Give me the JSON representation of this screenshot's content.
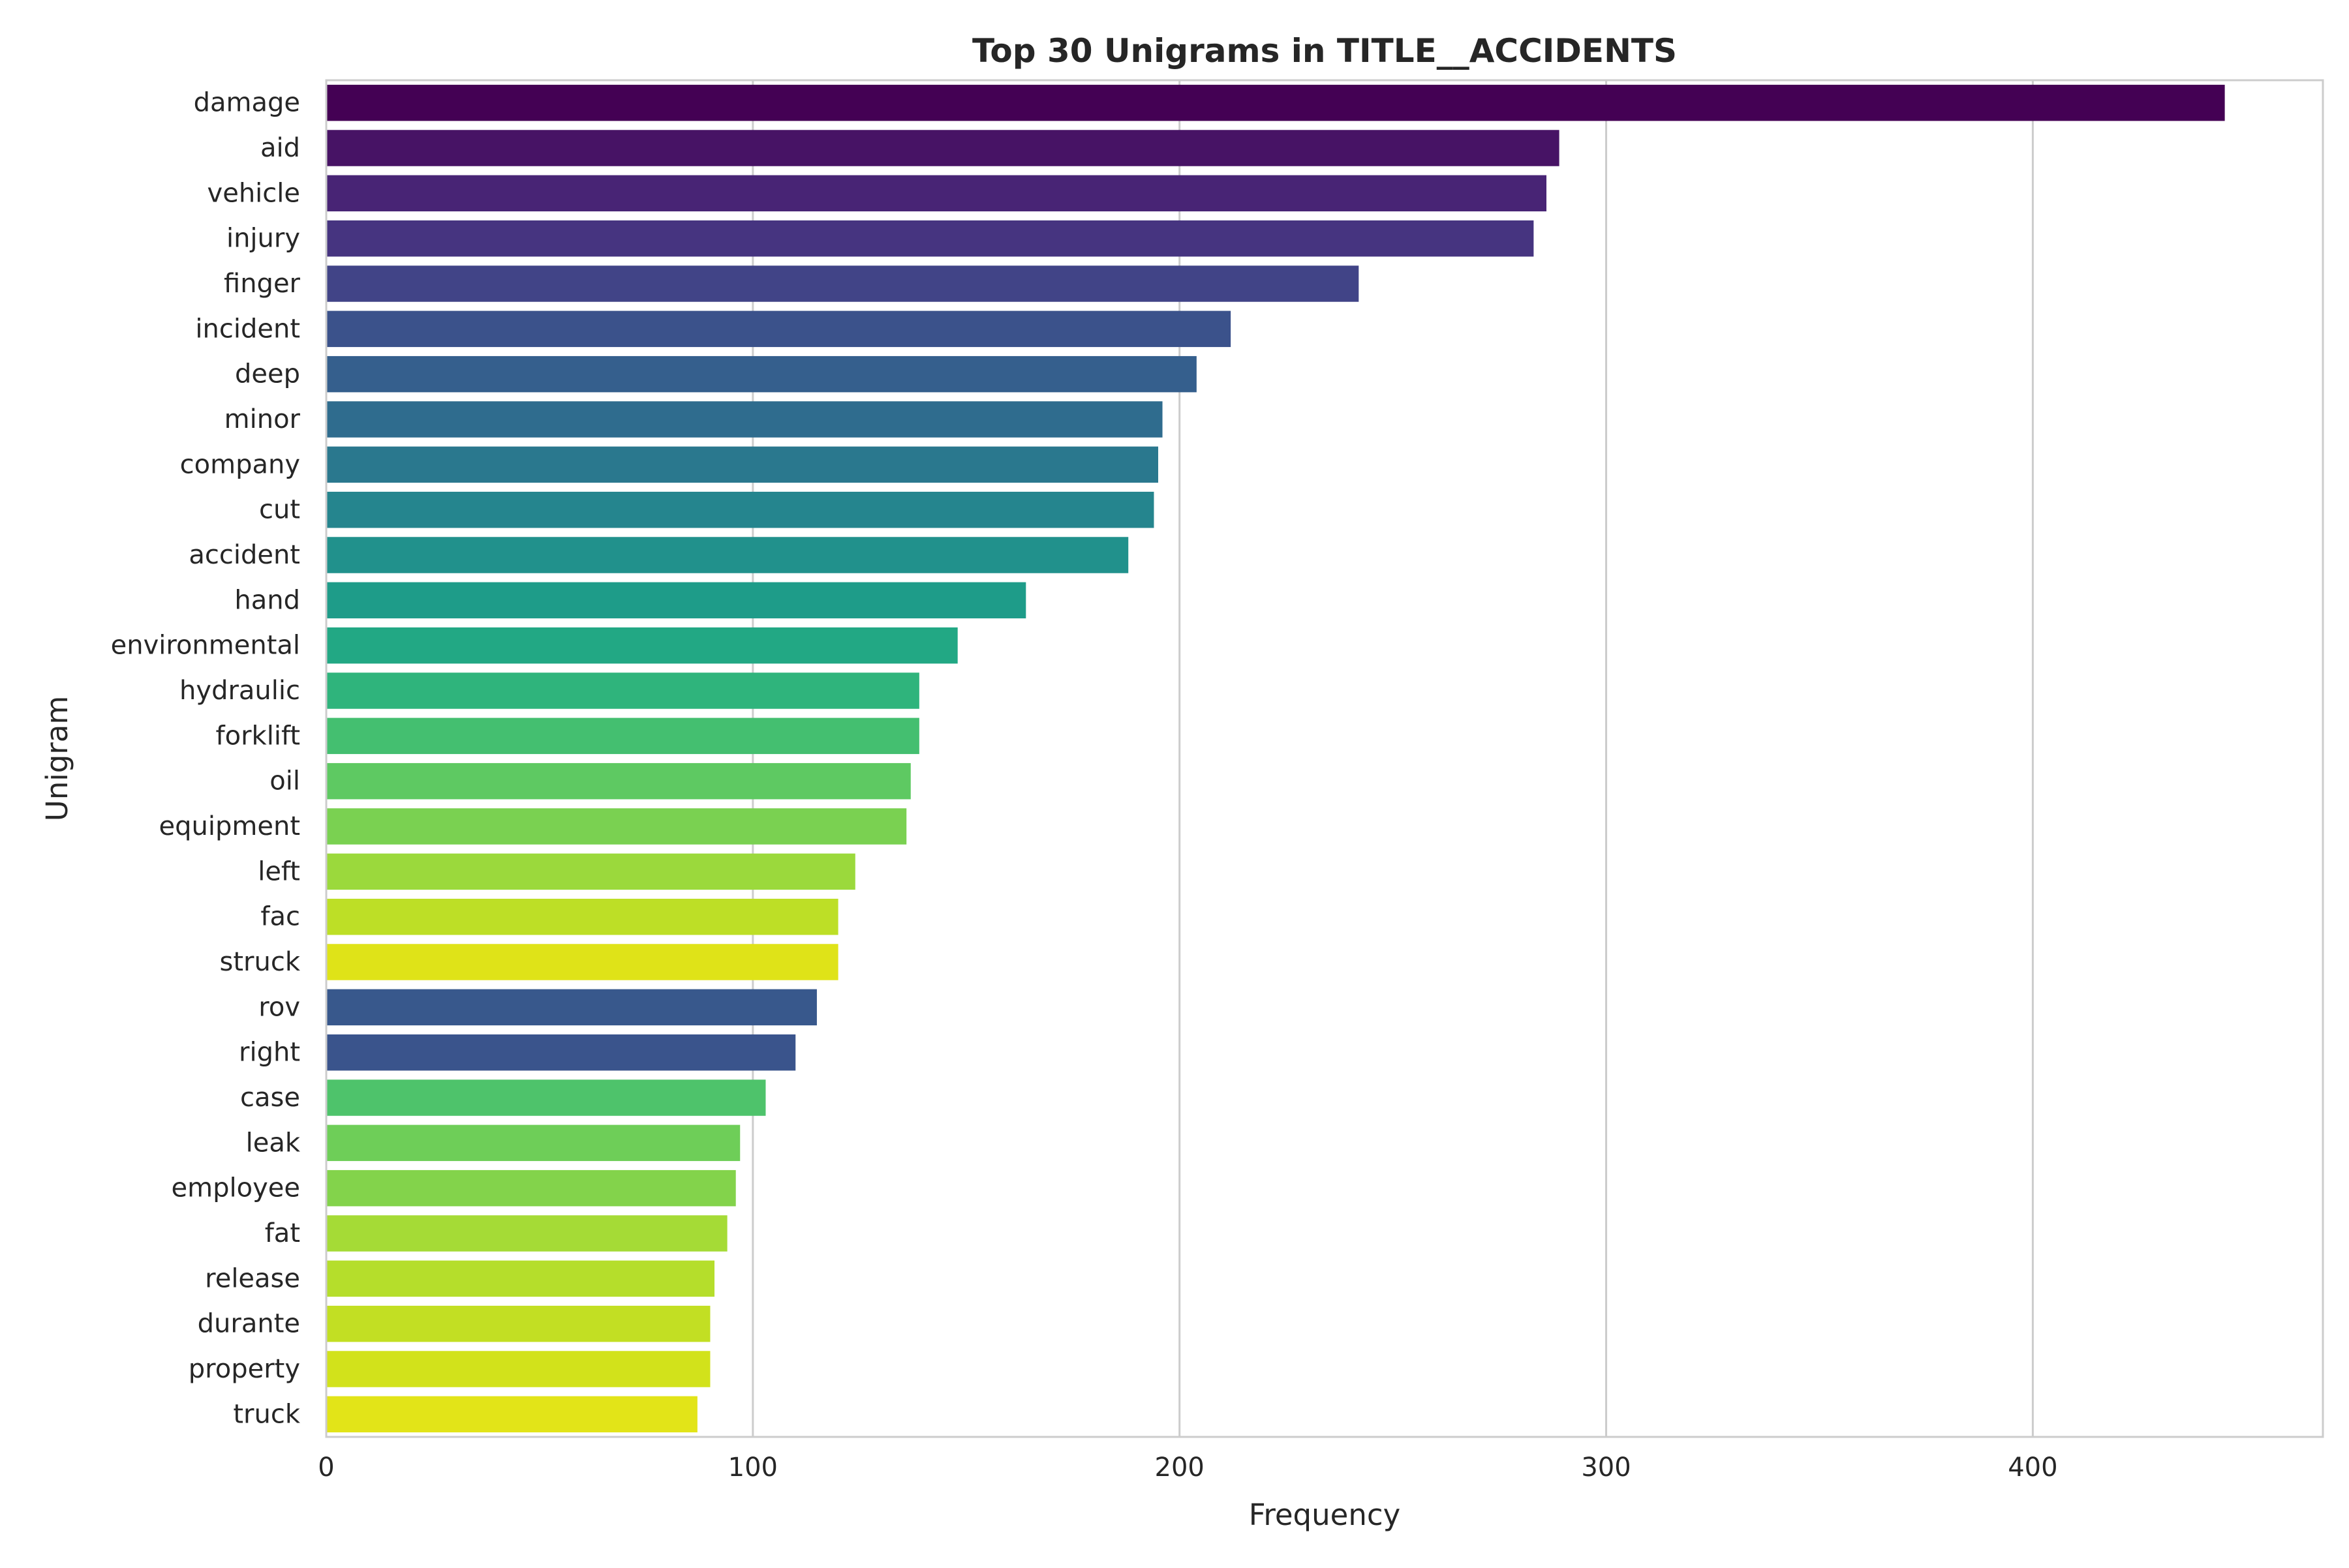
{
  "chart_data": {
    "type": "bar",
    "orientation": "horizontal",
    "title": "Top 30 Unigrams in TITLE__ACCIDENTS",
    "xlabel": "Frequency",
    "ylabel": "Unigram",
    "xlim": [
      0,
      468
    ],
    "x_ticks": [
      0,
      100,
      200,
      300,
      400
    ],
    "grid": "x-axis vertical lines",
    "legend": "none",
    "palette": "viridis",
    "colors": {
      "grid": "#cccccc",
      "frame": "#cccccc",
      "text": "#262626",
      "background": "#ffffff"
    },
    "categories": [
      "damage",
      "aid",
      "vehicle",
      "injury",
      "finger",
      "incident",
      "deep",
      "minor",
      "company",
      "cut",
      "accident",
      "hand",
      "environmental",
      "hydraulic",
      "forklift",
      "oil",
      "equipment",
      "left",
      "fac",
      "struck",
      "rov",
      "right",
      "case",
      "leak",
      "employee",
      "fat",
      "release",
      "durante",
      "property",
      "truck"
    ],
    "values": [
      445,
      289,
      286,
      283,
      242,
      212,
      204,
      196,
      195,
      194,
      188,
      164,
      148,
      139,
      139,
      137,
      136,
      124,
      120,
      120,
      115,
      110,
      103,
      97,
      96,
      94,
      91,
      90,
      90,
      87
    ],
    "bar_colors": [
      "#440154",
      "#471365",
      "#482475",
      "#463480",
      "#414487",
      "#3b528b",
      "#355f8d",
      "#2f6c8e",
      "#2a788e",
      "#25858e",
      "#21918c",
      "#1e9c89",
      "#22a884",
      "#2fb47c",
      "#44bf70",
      "#5ec962",
      "#7ad151",
      "#9bd93c",
      "#bddf26",
      "#dfe318",
      "#38588c",
      "#3a548c",
      "#4ec36b",
      "#6ece58",
      "#83d34b",
      "#a5db36",
      "#b5de2b",
      "#c2df23",
      "#d2e21b",
      "#e2e418"
    ]
  }
}
